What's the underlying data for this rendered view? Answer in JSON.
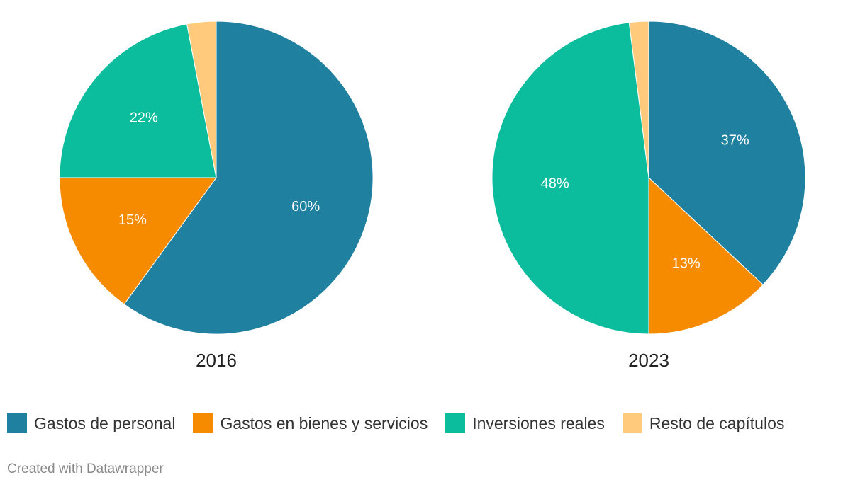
{
  "chart_data": [
    {
      "type": "pie",
      "title": "2016",
      "slices": [
        {
          "label": "Gastos de personal",
          "value": 60,
          "display": "60%"
        },
        {
          "label": "Gastos en bienes y servicios",
          "value": 15,
          "display": "15%"
        },
        {
          "label": "Inversiones reales",
          "value": 22,
          "display": "22%"
        },
        {
          "label": "Resto de capítulos",
          "value": 3,
          "display": ""
        }
      ]
    },
    {
      "type": "pie",
      "title": "2023",
      "slices": [
        {
          "label": "Gastos de personal",
          "value": 37,
          "display": "37%"
        },
        {
          "label": "Gastos en bienes y servicios",
          "value": 13,
          "display": "13%"
        },
        {
          "label": "Inversiones reales",
          "value": 48,
          "display": "48%"
        },
        {
          "label": "Resto de capítulos",
          "value": 2,
          "display": ""
        }
      ]
    }
  ],
  "legend": [
    {
      "label": "Gastos de personal",
      "color": "#1f80a0"
    },
    {
      "label": "Gastos en bienes y servicios",
      "color": "#f78b00"
    },
    {
      "label": "Inversiones reales",
      "color": "#0bbc9d"
    },
    {
      "label": "Resto de capítulos",
      "color": "#ffca7b"
    }
  ],
  "footer": "Created with Datawrapper"
}
